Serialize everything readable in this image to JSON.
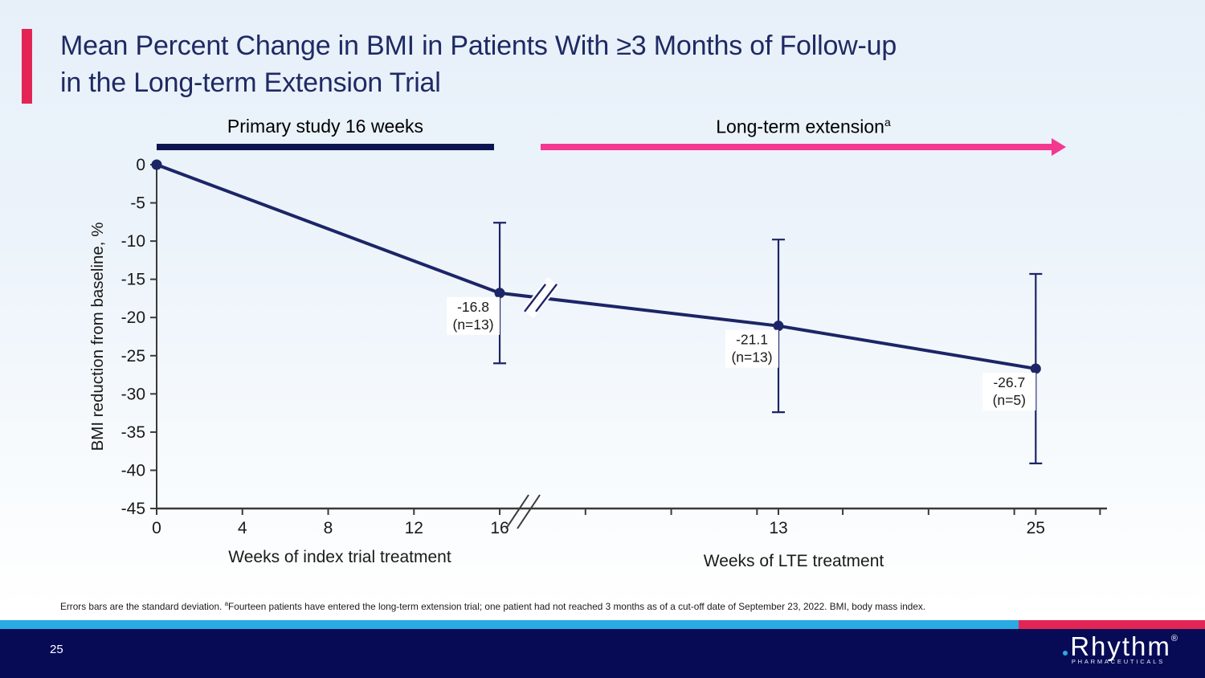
{
  "slide": {
    "header": {
      "title_line1": "Mean Percent Change in BMI in Patients With ≥3 Months of Follow-up",
      "title_line2": "in the Long-term Extension Trial"
    },
    "phases": {
      "primary": {
        "label": "Primary study 16 weeks"
      },
      "lte": {
        "label": "Long-term extension",
        "sup": "a"
      }
    },
    "footnote": {
      "part1": "Errors bars are the standard deviation. ",
      "sup": "a",
      "part2": "Fourteen patients have entered the long-term extension trial; one patient had not reached 3 months as of a cut-off date of September 23, 2022. BMI, body mass index."
    },
    "footer": {
      "page_number": "25",
      "logo_word": "Rhythm",
      "logo_reg": "®",
      "logo_sub": "PHARMACEUTICALS"
    }
  },
  "colors": {
    "accent_pink": "#e32556",
    "arrow_pink": "#f43890",
    "phase_bar_navy": "#0d1550",
    "line_navy": "#1c2566",
    "axis_gray": "#3a3a3a",
    "label_black": "#1a1a1a",
    "strip_cyan": "#29abe2",
    "footer_navy": "#070b56",
    "title_navy": "#1f2a63",
    "background_top": "#e7f0f9"
  },
  "chart_data": {
    "type": "line",
    "title": "Mean Percent Change in BMI in Patients With ≥3 Months of Follow-up in the Long-term Extension Trial",
    "ylabel": "BMI reduction from baseline, %",
    "ylim": [
      -45,
      0
    ],
    "y_ticks": [
      0,
      -5,
      -10,
      -15,
      -20,
      -25,
      -30,
      -35,
      -40,
      -45
    ],
    "grid": false,
    "legend": false,
    "primary_weeks": 16,
    "x_axis_left": {
      "label": "Weeks of index trial treatment",
      "ticks": [
        0,
        4,
        8,
        12,
        16
      ]
    },
    "x_axis_right": {
      "label": "Weeks of LTE treatment",
      "ticks": [
        13,
        25
      ]
    },
    "minor_tick_weeks": [
      20,
      24,
      28,
      32,
      36,
      40,
      44
    ],
    "axis_break_after_week": 16,
    "series": [
      {
        "name": "Mean percent change in BMI from baseline",
        "points": [
          {
            "week_total": 0,
            "value": 0
          },
          {
            "week_total": 16,
            "value": -16.8,
            "sd": 9.2,
            "label": "-16.8",
            "n_label": "(n=13)"
          },
          {
            "week_total": 29,
            "lte_week": 13,
            "value": -21.1,
            "sd": 11.3,
            "label": "-21.1",
            "n_label": "(n=13)"
          },
          {
            "week_total": 41,
            "lte_week": 25,
            "value": -26.7,
            "sd": 12.4,
            "label": "-26.7",
            "n_label": "(n=5)"
          }
        ]
      }
    ]
  }
}
